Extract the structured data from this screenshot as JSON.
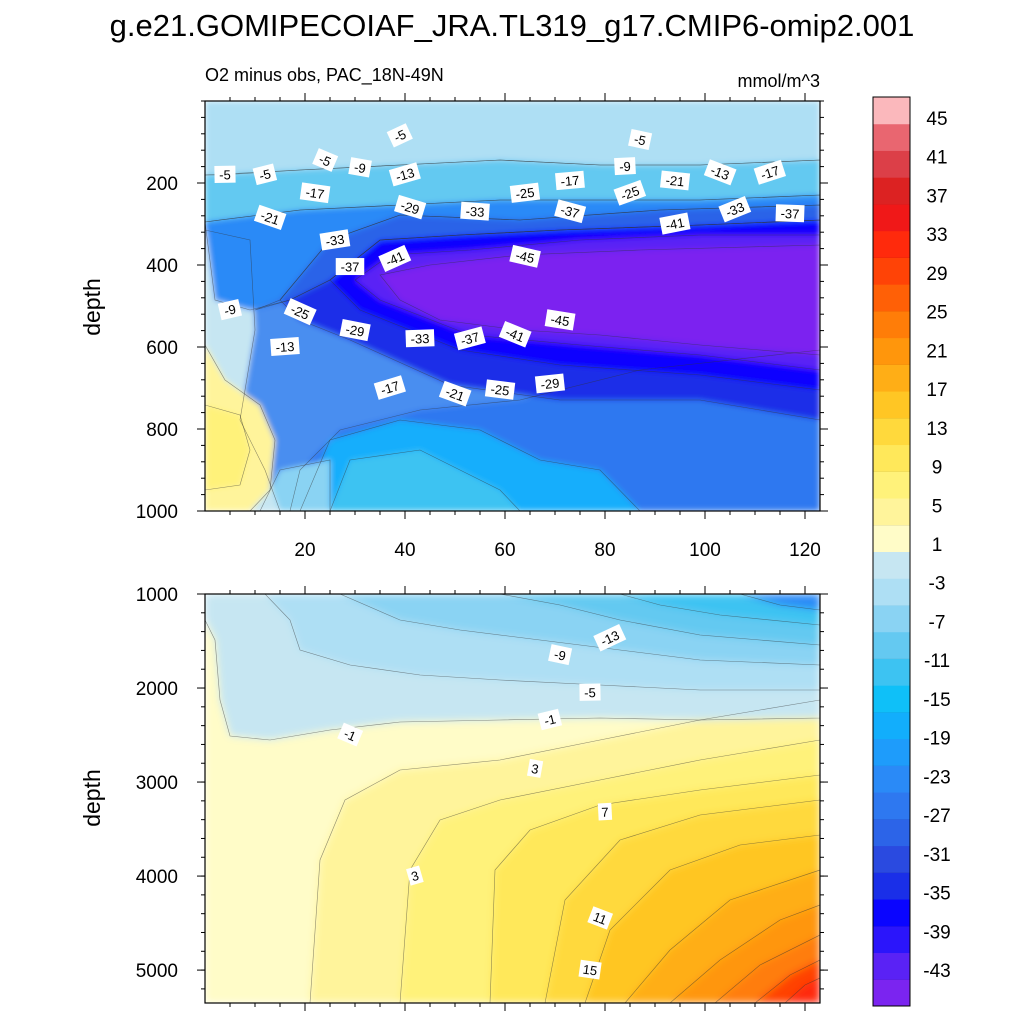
{
  "colors": {
    "palette": [
      "#7b24f0",
      "#5a22f5",
      "#2b15fb",
      "#0a05ff",
      "#1a2fe8",
      "#2a4ae0",
      "#2c64e8",
      "#2e78f0",
      "#2a8af7",
      "#1e9cfb",
      "#12aefc",
      "#0fc0f8",
      "#3dc3f2",
      "#64c9f1",
      "#8ad3f3",
      "#aedff4",
      "#c6e6f2",
      "#fffcc8",
      "#fff49b",
      "#fff27a",
      "#ffe85a",
      "#ffd93c",
      "#ffc624",
      "#ffae16",
      "#ff960c",
      "#ff7d08",
      "#ff6006",
      "#ff4306",
      "#ff2a0c",
      "#f01818",
      "#dc2222",
      "#dc3f48",
      "#e96670",
      "#fbb8bc"
    ]
  },
  "chart_data": {
    "type": "heatmap",
    "title": "g.e21.GOMIPECOIAF_JRA.TL319_g17.CMIP6-omip2.001",
    "subtitle_left": "O2 minus obs, PAC_18N-49N",
    "subtitle_right": "mmol/m^3",
    "ylabel": "depth",
    "xlabel": "",
    "colorbar_labels": [
      "45",
      "41",
      "37",
      "33",
      "29",
      "25",
      "21",
      "17",
      "13",
      "9",
      "5",
      "1",
      "-3",
      "-7",
      "-11",
      "-15",
      "-19",
      "-23",
      "-27",
      "-31",
      "-35",
      "-39",
      "-43"
    ],
    "colorbar_levels": [
      -45,
      -43,
      -41,
      -39,
      -37,
      -35,
      -33,
      -31,
      -29,
      -27,
      -25,
      -23,
      -21,
      -19,
      -17,
      -15,
      -13,
      -11,
      -9,
      -7,
      -5,
      -3,
      -1,
      1,
      3,
      5,
      7,
      9,
      11,
      13,
      15,
      17,
      19,
      21,
      23,
      25,
      27,
      29,
      31,
      33,
      35,
      37,
      39,
      41,
      43,
      45,
      47
    ],
    "panels": [
      {
        "name": "upper",
        "ylim": [
          1000,
          0
        ],
        "xlim": [
          0,
          123
        ],
        "yticks": [
          "200",
          "400",
          "600",
          "800",
          "1000"
        ],
        "ytick_values": [
          200,
          400,
          600,
          800,
          1000
        ],
        "xticks": [
          "20",
          "40",
          "60",
          "80",
          "100",
          "120"
        ],
        "xtick_values": [
          20,
          40,
          60,
          80,
          100,
          120
        ],
        "contour_labels": [
          {
            "text": "-5",
            "x": 39,
            "y": 85
          },
          {
            "text": "-5",
            "x": 87,
            "y": 95
          },
          {
            "text": "-5",
            "x": 4,
            "y": 180
          },
          {
            "text": "-5",
            "x": 12,
            "y": 180
          },
          {
            "text": "-5",
            "x": 24,
            "y": 145
          },
          {
            "text": "-9",
            "x": 31,
            "y": 163
          },
          {
            "text": "-9",
            "x": 84,
            "y": 160
          },
          {
            "text": "-13",
            "x": 40,
            "y": 180
          },
          {
            "text": "-13",
            "x": 103,
            "y": 175
          },
          {
            "text": "-17",
            "x": 22,
            "y": 225
          },
          {
            "text": "-17",
            "x": 73,
            "y": 195
          },
          {
            "text": "-17",
            "x": 113,
            "y": 175
          },
          {
            "text": "-21",
            "x": 13,
            "y": 285
          },
          {
            "text": "-21",
            "x": 94,
            "y": 195
          },
          {
            "text": "-25",
            "x": 64,
            "y": 225
          },
          {
            "text": "-25",
            "x": 85,
            "y": 225
          },
          {
            "text": "-29",
            "x": 41,
            "y": 260
          },
          {
            "text": "-33",
            "x": 54,
            "y": 270
          },
          {
            "text": "-33",
            "x": 26,
            "y": 340
          },
          {
            "text": "-33",
            "x": 106,
            "y": 265
          },
          {
            "text": "-37",
            "x": 73,
            "y": 270
          },
          {
            "text": "-37",
            "x": 117,
            "y": 275
          },
          {
            "text": "-41",
            "x": 94,
            "y": 300
          },
          {
            "text": "-41",
            "x": 38,
            "y": 385
          },
          {
            "text": "-45",
            "x": 64,
            "y": 380
          },
          {
            "text": "-37",
            "x": 29,
            "y": 405
          },
          {
            "text": "-9",
            "x": 5,
            "y": 510
          },
          {
            "text": "-25",
            "x": 19,
            "y": 515
          },
          {
            "text": "-29",
            "x": 30,
            "y": 560
          },
          {
            "text": "-33",
            "x": 43,
            "y": 580
          },
          {
            "text": "-37",
            "x": 53,
            "y": 580
          },
          {
            "text": "-41",
            "x": 62,
            "y": 570
          },
          {
            "text": "-45",
            "x": 71,
            "y": 535
          },
          {
            "text": "-13",
            "x": 16,
            "y": 600
          },
          {
            "text": "-17",
            "x": 37,
            "y": 700
          },
          {
            "text": "-21",
            "x": 50,
            "y": 715
          },
          {
            "text": "-25",
            "x": 59,
            "y": 705
          },
          {
            "text": "-29",
            "x": 69,
            "y": 690
          }
        ]
      },
      {
        "name": "lower",
        "ylim": [
          5350,
          1000
        ],
        "xlim": [
          0,
          123
        ],
        "yticks": [
          "1000",
          "2000",
          "3000",
          "4000",
          "5000"
        ],
        "ytick_values": [
          1000,
          2000,
          3000,
          4000,
          5000
        ],
        "xticks": [],
        "xtick_values": [
          20,
          40,
          60,
          80,
          100,
          120
        ],
        "contour_labels": [
          {
            "text": "-13",
            "x": 81,
            "y": 1470
          },
          {
            "text": "-9",
            "x": 71,
            "y": 1650
          },
          {
            "text": "-5",
            "x": 77,
            "y": 2050
          },
          {
            "text": "-1",
            "x": 69,
            "y": 2340
          },
          {
            "text": "-1",
            "x": 29,
            "y": 2500
          },
          {
            "text": "3",
            "x": 66,
            "y": 2860
          },
          {
            "text": "7",
            "x": 80,
            "y": 3320
          },
          {
            "text": "3",
            "x": 42,
            "y": 4000
          },
          {
            "text": "11",
            "x": 79,
            "y": 4450
          },
          {
            "text": "15",
            "x": 77,
            "y": 5000
          }
        ]
      }
    ]
  }
}
